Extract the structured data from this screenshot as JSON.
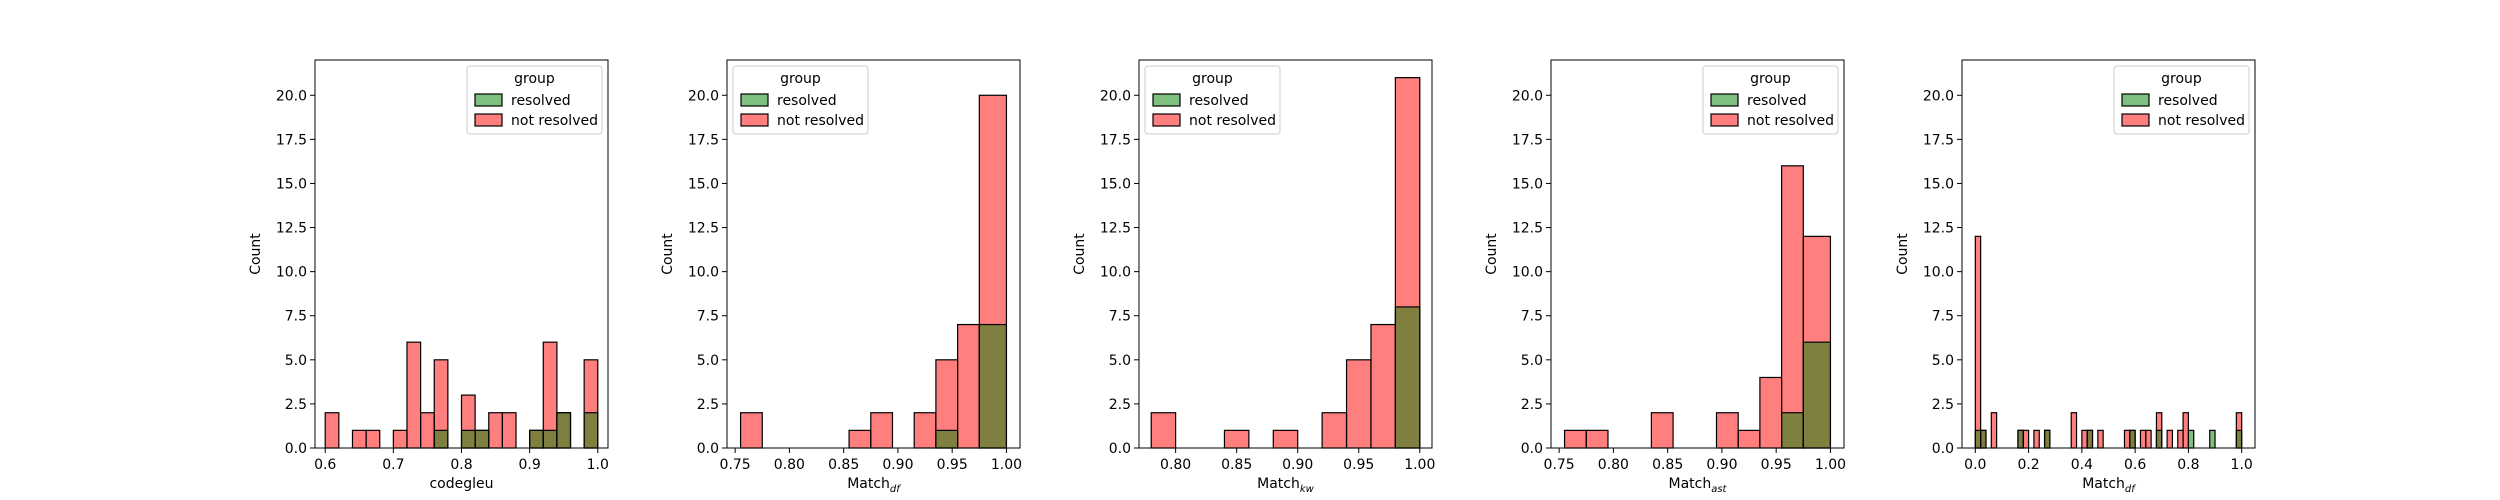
{
  "colors": {
    "resolved_fill": "#008000",
    "resolved_overlap_fill": "#808000",
    "not_resolved_fill": "#ff0000",
    "edge": "#000000"
  },
  "legend": {
    "title": "group",
    "entries": [
      "resolved",
      "not resolved"
    ]
  },
  "chart_data": [
    {
      "type": "histogram",
      "xlabel": "codegleu",
      "ylabel": "Count",
      "xlim": [
        0.585,
        1.015
      ],
      "ylim": [
        0,
        22
      ],
      "xticks": [
        0.6,
        0.7,
        0.8,
        0.9,
        1.0
      ],
      "xtick_labels": [
        "0.6",
        "0.7",
        "0.8",
        "0.9",
        "1.0"
      ],
      "yticks": [
        0,
        2.5,
        5,
        7.5,
        10,
        12.5,
        15,
        17.5,
        20
      ],
      "ytick_labels": [
        "0.0",
        "2.5",
        "5.0",
        "7.5",
        "10.0",
        "12.5",
        "15.0",
        "17.5",
        "20.0"
      ],
      "legend_position": "upper right",
      "bin_edges": [
        0.6,
        0.62,
        0.64,
        0.66,
        0.68,
        0.7,
        0.72,
        0.74,
        0.76,
        0.78,
        0.8,
        0.82,
        0.84,
        0.86,
        0.88,
        0.9,
        0.92,
        0.94,
        0.96,
        0.98,
        1.0
      ],
      "series": [
        {
          "name": "resolved",
          "values": [
            0,
            0,
            0,
            0,
            0,
            0,
            0,
            0,
            1,
            0,
            1,
            1,
            0,
            0,
            0,
            1,
            1,
            2,
            0,
            2
          ]
        },
        {
          "name": "not resolved",
          "values": [
            2,
            0,
            1,
            1,
            0,
            1,
            6,
            2,
            5,
            0,
            3,
            1,
            2,
            2,
            0,
            1,
            6,
            2,
            0,
            5
          ]
        }
      ]
    },
    {
      "type": "histogram",
      "xlabel": "Match",
      "xlabel_sub": "df",
      "ylabel": "Count",
      "xlim": [
        0.7425,
        1.0125
      ],
      "ylim": [
        0,
        22
      ],
      "xticks": [
        0.75,
        0.8,
        0.85,
        0.9,
        0.95,
        1.0
      ],
      "xtick_labels": [
        "0.75",
        "0.80",
        "0.85",
        "0.90",
        "0.95",
        "1.00"
      ],
      "yticks": [
        0,
        2.5,
        5,
        7.5,
        10,
        12.5,
        15,
        17.5,
        20
      ],
      "ytick_labels": [
        "0.0",
        "2.5",
        "5.0",
        "7.5",
        "10.0",
        "12.5",
        "15.0",
        "17.5",
        "20.0"
      ],
      "legend_position": "upper left",
      "bin_edges": [
        0.755,
        0.775,
        0.795,
        0.815,
        0.835,
        0.855,
        0.875,
        0.895,
        0.915,
        0.935,
        0.955,
        0.975,
        1.0
      ],
      "series": [
        {
          "name": "resolved",
          "values": [
            0,
            0,
            0,
            0,
            0,
            0,
            0,
            0,
            0,
            1,
            0,
            7
          ]
        },
        {
          "name": "not resolved",
          "values": [
            2,
            0,
            0,
            0,
            0,
            1,
            2,
            0,
            2,
            5,
            7,
            20
          ]
        }
      ]
    },
    {
      "type": "histogram",
      "xlabel": "Match",
      "xlabel_sub": "kw",
      "ylabel": "Count",
      "xlim": [
        0.77,
        1.01
      ],
      "ylim": [
        0,
        22
      ],
      "xticks": [
        0.8,
        0.85,
        0.9,
        0.95,
        1.0
      ],
      "xtick_labels": [
        "0.80",
        "0.85",
        "0.90",
        "0.95",
        "1.00"
      ],
      "yticks": [
        0,
        2.5,
        5,
        7.5,
        10,
        12.5,
        15,
        17.5,
        20
      ],
      "ytick_labels": [
        "0.0",
        "2.5",
        "5.0",
        "7.5",
        "10.0",
        "12.5",
        "15.0",
        "17.5",
        "20.0"
      ],
      "legend_position": "upper left",
      "bin_edges": [
        0.78,
        0.8,
        0.82,
        0.84,
        0.86,
        0.88,
        0.9,
        0.92,
        0.94,
        0.96,
        0.98,
        1.0
      ],
      "series": [
        {
          "name": "resolved",
          "values": [
            0,
            0,
            0,
            0,
            0,
            0,
            0,
            0,
            0,
            0,
            8
          ]
        },
        {
          "name": "not resolved",
          "values": [
            2,
            0,
            0,
            1,
            0,
            1,
            0,
            2,
            5,
            7,
            21
          ]
        }
      ]
    },
    {
      "type": "histogram",
      "xlabel": "Match",
      "xlabel_sub": "ast",
      "ylabel": "Count",
      "xlim": [
        0.7425,
        1.0125
      ],
      "ylim": [
        0,
        22
      ],
      "xticks": [
        0.75,
        0.8,
        0.85,
        0.9,
        0.95,
        1.0
      ],
      "xtick_labels": [
        "0.75",
        "0.80",
        "0.85",
        "0.90",
        "0.95",
        "1.00"
      ],
      "yticks": [
        0,
        2.5,
        5,
        7.5,
        10,
        12.5,
        15,
        17.5,
        20
      ],
      "ytick_labels": [
        "0.0",
        "2.5",
        "5.0",
        "7.5",
        "10.0",
        "12.5",
        "15.0",
        "17.5",
        "20.0"
      ],
      "legend_position": "upper right",
      "bin_edges": [
        0.755,
        0.775,
        0.795,
        0.815,
        0.835,
        0.855,
        0.875,
        0.895,
        0.915,
        0.935,
        0.955,
        0.975,
        1.0
      ],
      "series": [
        {
          "name": "resolved",
          "values": [
            0,
            0,
            0,
            0,
            0,
            0,
            0,
            0,
            0,
            0,
            2,
            6
          ]
        },
        {
          "name": "not resolved",
          "values": [
            1,
            1,
            0,
            0,
            2,
            0,
            0,
            2,
            1,
            4,
            16,
            12
          ]
        }
      ]
    },
    {
      "type": "histogram",
      "xlabel": "Match",
      "xlabel_sub": "df",
      "ylabel": "Count",
      "xlim": [
        -0.05,
        1.05
      ],
      "ylim": [
        0,
        22
      ],
      "xticks": [
        0,
        0.2,
        0.4,
        0.6,
        0.8,
        1.0
      ],
      "xtick_labels": [
        "0.0",
        "0.2",
        "0.4",
        "0.6",
        "0.8",
        "1.0"
      ],
      "yticks": [
        0,
        2.5,
        5,
        7.5,
        10,
        12.5,
        15,
        17.5,
        20
      ],
      "ytick_labels": [
        "0.0",
        "2.5",
        "5.0",
        "7.5",
        "10.0",
        "12.5",
        "15.0",
        "17.5",
        "20.0"
      ],
      "legend_position": "upper right",
      "bin_edges": [
        0.0,
        0.02,
        0.04,
        0.06,
        0.08,
        0.1,
        0.12,
        0.14,
        0.16,
        0.18,
        0.2,
        0.22,
        0.24,
        0.26,
        0.28,
        0.3,
        0.32,
        0.34,
        0.36,
        0.38,
        0.4,
        0.42,
        0.44,
        0.46,
        0.48,
        0.5,
        0.52,
        0.54,
        0.56,
        0.58,
        0.6,
        0.62,
        0.64,
        0.66,
        0.68,
        0.7,
        0.72,
        0.74,
        0.76,
        0.78,
        0.8,
        0.82,
        0.84,
        0.86,
        0.88,
        0.9,
        0.92,
        0.94,
        0.96,
        0.98,
        1.0
      ],
      "series": [
        {
          "name": "resolved",
          "values": [
            1,
            1,
            0,
            0,
            0,
            0,
            0,
            0,
            1,
            0,
            0,
            0,
            0,
            1,
            0,
            0,
            0,
            0,
            0,
            0,
            0,
            1,
            0,
            0,
            0,
            0,
            0,
            0,
            0,
            1,
            0,
            0,
            0,
            0,
            1,
            0,
            0,
            0,
            0,
            0,
            1,
            0,
            0,
            0,
            1,
            0,
            0,
            0,
            0,
            1
          ]
        },
        {
          "name": "not resolved",
          "values": [
            12,
            1,
            0,
            2,
            0,
            0,
            0,
            0,
            1,
            1,
            0,
            1,
            0,
            1,
            0,
            0,
            0,
            0,
            2,
            0,
            1,
            1,
            0,
            1,
            0,
            0,
            0,
            0,
            1,
            1,
            0,
            1,
            1,
            0,
            2,
            0,
            1,
            0,
            1,
            2,
            0,
            0,
            0,
            0,
            0,
            0,
            0,
            0,
            0,
            2
          ]
        }
      ]
    }
  ]
}
